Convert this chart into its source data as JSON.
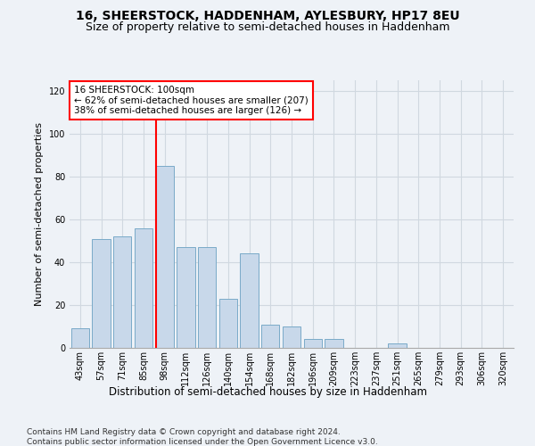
{
  "title": "16, SHEERSTOCK, HADDENHAM, AYLESBURY, HP17 8EU",
  "subtitle": "Size of property relative to semi-detached houses in Haddenham",
  "xlabel": "Distribution of semi-detached houses by size in Haddenham",
  "ylabel": "Number of semi-detached properties",
  "categories": [
    "43sqm",
    "57sqm",
    "71sqm",
    "85sqm",
    "98sqm",
    "112sqm",
    "126sqm",
    "140sqm",
    "154sqm",
    "168sqm",
    "182sqm",
    "196sqm",
    "209sqm",
    "223sqm",
    "237sqm",
    "251sqm",
    "265sqm",
    "279sqm",
    "293sqm",
    "306sqm",
    "320sqm"
  ],
  "values": [
    9,
    51,
    52,
    56,
    85,
    47,
    47,
    23,
    44,
    11,
    10,
    4,
    4,
    0,
    0,
    2,
    0,
    0,
    0,
    0,
    0
  ],
  "bar_color": "#c8d8ea",
  "bar_edge_color": "#7aaac8",
  "property_label": "16 SHEERSTOCK: 100sqm",
  "pct_smaller": 62,
  "n_smaller": 207,
  "pct_larger": 38,
  "n_larger": 126,
  "vline_color": "red",
  "vline_index": 4,
  "ylim": [
    0,
    125
  ],
  "yticks": [
    0,
    20,
    40,
    60,
    80,
    100,
    120
  ],
  "annotation_box_color": "white",
  "annotation_box_edge": "red",
  "grid_color": "#d0d8e0",
  "background_color": "#eef2f7",
  "footer_line1": "Contains HM Land Registry data © Crown copyright and database right 2024.",
  "footer_line2": "Contains public sector information licensed under the Open Government Licence v3.0.",
  "title_fontsize": 10,
  "subtitle_fontsize": 9,
  "xlabel_fontsize": 8.5,
  "ylabel_fontsize": 8,
  "tick_fontsize": 7,
  "annotation_fontsize": 7.5,
  "footer_fontsize": 6.5
}
